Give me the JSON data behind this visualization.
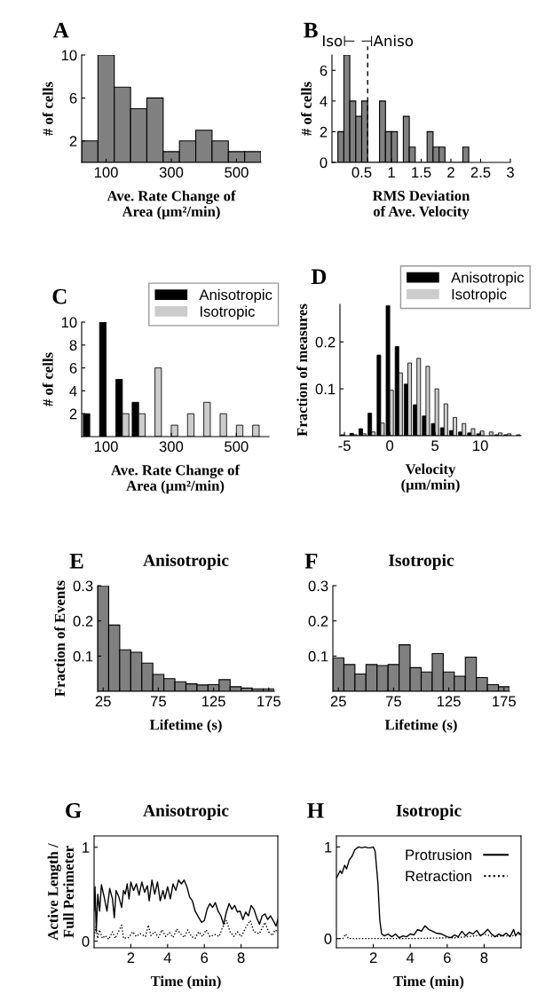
{
  "chart_data": [
    {
      "type": "histogram",
      "annotations": [
        "A"
      ],
      "xlabel": "Ave. Rate Change of\nArea (μm²/min)",
      "ylabel": "# of cells",
      "color": "#808080",
      "bins": [
        25,
        75,
        125,
        175,
        225,
        275,
        325,
        375,
        425,
        475,
        525,
        575
      ],
      "values": [
        2,
        10,
        7,
        5,
        6,
        1,
        2,
        3,
        2,
        1,
        1
      ],
      "xlim": [
        25,
        575
      ],
      "xticks": [
        100,
        300,
        500
      ],
      "ylim": [
        0,
        10
      ],
      "yticks": [
        2,
        6,
        10
      ]
    },
    {
      "type": "histogram",
      "annotations": [
        "B",
        "Iso⊢ ⊣Aniso"
      ],
      "xlabel": "RMS Deviation\nof Ave. Velocity",
      "ylabel": "# of cells",
      "color": "#808080",
      "bins": [
        0.1,
        0.2,
        0.3,
        0.4,
        0.5,
        0.6,
        0.7,
        0.8,
        0.9,
        1.0,
        1.1,
        1.2,
        1.3,
        1.4,
        1.5,
        1.6,
        1.7,
        1.8,
        1.9,
        2.0,
        2.1,
        2.2,
        2.3
      ],
      "values": [
        2,
        7,
        4,
        3,
        4,
        0,
        0,
        4,
        2,
        2,
        0,
        3,
        1,
        0,
        0,
        2,
        1,
        1,
        0,
        0,
        0,
        1
      ],
      "xlim": [
        0,
        3
      ],
      "xticks": [
        0.5,
        1,
        1.5,
        2,
        2.5,
        3
      ],
      "ylim": [
        0,
        7
      ],
      "yticks": [
        0,
        2,
        4,
        6
      ],
      "ref_lines": [
        {
          "axis": "x",
          "value": 0.6,
          "line_style": "dashed",
          "color": "#000000"
        }
      ]
    },
    {
      "type": "bar",
      "annotations": [
        "C"
      ],
      "xlabel": "Ave. Rate Change of\nArea (μm²/min)",
      "ylabel": "# of cells",
      "legend": "top right",
      "x": [
        50,
        100,
        150,
        200,
        250,
        300,
        350,
        400,
        450,
        500,
        550
      ],
      "series": [
        {
          "name": "Anisotropic",
          "color": "#000000",
          "values": [
            2,
            10,
            5,
            3,
            null,
            null,
            null,
            null,
            null,
            null,
            null
          ]
        },
        {
          "name": "Isotropic",
          "color": "#cccccc",
          "values": [
            null,
            null,
            2,
            2,
            6,
            1,
            2,
            3,
            2,
            1,
            1
          ]
        }
      ],
      "xlim": [
        25,
        600
      ],
      "xticks": [
        100,
        300,
        500
      ],
      "ylim": [
        0,
        10
      ],
      "yticks": [
        2,
        4,
        6,
        8,
        10
      ]
    },
    {
      "type": "bar",
      "annotations": [
        "D"
      ],
      "xlabel": "Velocity\n(μm/min)",
      "ylabel": "Fraction of measures",
      "legend": "top right",
      "x": [
        -5,
        -4,
        -3,
        -2,
        -1,
        0,
        1,
        2,
        3,
        4,
        5,
        6,
        7,
        8,
        9,
        10,
        11,
        12,
        13,
        14
      ],
      "series": [
        {
          "name": "Anisotropic",
          "color": "#000000",
          "values": [
            0.002,
            0.005,
            0.015,
            0.048,
            0.172,
            0.277,
            0.19,
            0.11,
            0.066,
            0.042,
            0.026,
            0.017,
            0.011,
            0.008,
            0.006,
            0.004,
            null,
            0.002,
            0.002,
            null
          ]
        },
        {
          "name": "Isotropic",
          "color": "#cccccc",
          "values": [
            null,
            0.002,
            0.004,
            0.008,
            0.027,
            0.097,
            0.134,
            0.155,
            0.165,
            0.148,
            0.1,
            0.068,
            0.039,
            0.026,
            0.015,
            0.01,
            0.008,
            0.006,
            0.004,
            0.002
          ]
        }
      ],
      "xlim": [
        -5.5,
        14.5
      ],
      "xticks": [
        -5,
        0,
        5,
        10
      ],
      "ylim": [
        0,
        0.28
      ],
      "yticks": [
        0.1,
        0.2
      ]
    },
    {
      "type": "histogram",
      "annotations": [
        "E"
      ],
      "title": "Anisotropic",
      "xlabel": "Lifetime (s)",
      "ylabel": "Fraction of Events",
      "color": "#808080",
      "bins": [
        20,
        30,
        40,
        50,
        60,
        70,
        80,
        90,
        100,
        110,
        120,
        130,
        140,
        150,
        160,
        170,
        180
      ],
      "values": [
        0.3,
        0.188,
        0.118,
        0.111,
        0.08,
        0.048,
        0.036,
        0.027,
        0.021,
        0.018,
        0.019,
        0.033,
        0.013,
        0.009,
        0.007,
        0.007
      ],
      "xlim": [
        20,
        180
      ],
      "xticks": [
        25,
        75,
        125,
        175
      ],
      "ylim": [
        0,
        0.3
      ],
      "yticks": [
        0.1,
        0.2,
        0.3
      ]
    },
    {
      "type": "histogram",
      "annotations": [
        "F"
      ],
      "title": "Isotropic",
      "xlabel": "Lifetime (s)",
      "color": "#808080",
      "bins": [
        20,
        30,
        40,
        50,
        60,
        70,
        80,
        90,
        100,
        110,
        120,
        130,
        140,
        150,
        160,
        170,
        180
      ],
      "values": [
        0.095,
        0.076,
        0.049,
        0.076,
        0.073,
        0.076,
        0.132,
        0.067,
        0.055,
        0.107,
        0.055,
        0.043,
        0.097,
        0.039,
        0.019,
        0.013
      ],
      "xlim": [
        20,
        180
      ],
      "xticks": [
        25,
        75,
        125,
        175
      ],
      "ylim": [
        0,
        0.3
      ],
      "yticks": [
        0.1,
        0.2,
        0.3
      ]
    },
    {
      "type": "line",
      "annotations": [
        "G"
      ],
      "title": "Anisotropic",
      "xlabel": "Time (min)",
      "ylabel": "Active Length /\nFull Perimeter",
      "series": [
        {
          "color": "#000000",
          "line_style": "solid",
          "x": [
            0,
            0.05,
            0.12,
            0.2,
            0.3,
            0.4,
            0.55,
            0.7,
            0.85,
            1.0,
            1.1,
            1.2,
            1.35,
            1.5,
            1.6,
            1.7,
            1.8,
            1.9,
            2.0,
            2.15,
            2.3,
            2.45,
            2.6,
            2.75,
            2.9,
            3.0,
            3.15,
            3.3,
            3.45,
            3.6,
            3.75,
            3.85,
            4.0,
            4.15,
            4.3,
            4.45,
            4.6,
            4.75,
            4.9,
            5.05,
            5.2,
            5.35,
            5.5,
            5.7,
            5.85,
            6.0,
            6.15,
            6.3,
            6.45,
            6.6,
            6.75,
            6.9,
            7.05,
            7.2,
            7.35,
            7.5,
            7.65,
            7.8,
            7.95,
            8.1,
            8.25,
            8.4,
            8.55,
            8.7,
            8.85,
            9.0,
            9.15,
            9.3,
            9.45,
            9.6,
            9.75,
            9.9,
            10
          ],
          "values": [
            0.32,
            0.58,
            0.1,
            0.5,
            0.32,
            0.6,
            0.47,
            0.32,
            0.56,
            0.45,
            0.25,
            0.54,
            0.47,
            0.36,
            0.54,
            0.5,
            0.61,
            0.45,
            0.63,
            0.54,
            0.61,
            0.49,
            0.63,
            0.52,
            0.59,
            0.43,
            0.65,
            0.5,
            0.63,
            0.43,
            0.54,
            0.45,
            0.58,
            0.45,
            0.61,
            0.54,
            0.65,
            0.61,
            0.65,
            0.58,
            0.47,
            0.43,
            0.32,
            0.25,
            0.2,
            0.22,
            0.34,
            0.4,
            0.36,
            0.41,
            0.32,
            0.27,
            0.18,
            0.31,
            0.4,
            0.34,
            0.38,
            0.31,
            0.32,
            0.23,
            0.31,
            0.27,
            0.38,
            0.34,
            0.25,
            0.18,
            0.27,
            0.29,
            0.23,
            0.27,
            0.22,
            0.16,
            0.23
          ]
        },
        {
          "color": "#000000",
          "line_style": "dotted",
          "x": [
            0,
            0.1,
            0.2,
            0.3,
            0.45,
            0.6,
            0.8,
            1.0,
            1.15,
            1.5,
            1.6,
            1.9,
            2.1,
            2.3,
            2.5,
            2.8,
            2.95,
            3.1,
            3.3,
            3.5,
            3.7,
            3.9,
            4.1,
            4.3,
            4.5,
            4.7,
            4.9,
            5.1,
            5.3,
            5.5,
            5.7,
            5.9,
            6.1,
            6.3,
            6.6,
            6.8,
            7.0,
            7.2,
            7.4,
            7.6,
            7.8,
            8.0,
            8.3,
            8.5,
            8.7,
            9.0,
            9.3,
            9.5,
            9.7,
            9.85,
            10
          ],
          "values": [
            0.05,
            0.15,
            0.03,
            0.12,
            0.03,
            0.06,
            0.02,
            0.1,
            0.03,
            0.17,
            0.03,
            0.04,
            0.1,
            0.05,
            0.08,
            0.05,
            0.17,
            0.06,
            0.1,
            0.04,
            0.12,
            0.05,
            0.09,
            0.04,
            0.13,
            0.08,
            0.04,
            0.12,
            0.05,
            0.03,
            0.1,
            0.05,
            0.12,
            0.05,
            0.07,
            0.05,
            0.15,
            0.22,
            0.1,
            0.05,
            0.1,
            0.05,
            0.16,
            0.22,
            0.1,
            0.08,
            0.2,
            0.1,
            0.06,
            0.12,
            0.1
          ]
        }
      ],
      "xlim": [
        0,
        10
      ],
      "xticks": [
        2,
        4,
        6,
        8
      ],
      "ylim": [
        -0.07,
        1.12
      ],
      "yticks": [
        0,
        1
      ]
    },
    {
      "type": "line",
      "annotations": [
        "H"
      ],
      "title": "Isotropic",
      "xlabel": "Time (min)",
      "legend": "top right",
      "series": [
        {
          "name": "Protrusion",
          "color": "#000000",
          "line_style": "solid",
          "x": [
            0,
            0.2,
            0.3,
            0.45,
            0.55,
            0.7,
            0.85,
            1.0,
            1.2,
            1.4,
            1.55,
            1.7,
            1.85,
            2.0,
            2.1,
            2.25,
            2.35,
            2.45,
            2.6,
            2.8,
            3.0,
            3.2,
            3.4,
            3.6,
            3.8,
            4.0,
            4.2,
            4.4,
            4.6,
            4.8,
            5.0,
            5.2,
            5.4,
            5.7,
            6.0,
            6.2,
            6.4,
            6.6,
            6.8,
            7.0,
            7.2,
            7.4,
            7.6,
            7.8,
            8.0,
            8.2,
            8.4,
            8.6,
            8.8,
            9.0,
            9.2,
            9.4,
            9.6,
            9.7,
            9.85,
            10
          ],
          "values": [
            0.66,
            0.74,
            0.71,
            0.8,
            0.76,
            0.86,
            0.9,
            0.97,
            1.0,
            0.99,
            1.0,
            0.99,
            0.99,
            1.0,
            0.95,
            0.6,
            0.2,
            0.05,
            0.03,
            0.05,
            0.02,
            0.05,
            0.01,
            0.03,
            0.02,
            0.05,
            0.04,
            0.1,
            0.08,
            0.14,
            0.1,
            0.08,
            0.06,
            0.05,
            0.02,
            0.01,
            0.04,
            0.02,
            0.08,
            0.03,
            0.07,
            0.05,
            0.09,
            0.03,
            0.06,
            0.1,
            0.05,
            0.02,
            0.05,
            0.03,
            0.06,
            0.02,
            0.1,
            0.03,
            0.07,
            0.04
          ]
        },
        {
          "name": "Retraction",
          "color": "#000000",
          "line_style": "dotted",
          "x": [
            0,
            0.35,
            0.5,
            0.65,
            4,
            6.5,
            7.5,
            8,
            8.5,
            9,
            9.5,
            10
          ],
          "values": [
            0,
            0,
            0.05,
            0,
            0,
            0.01,
            0.03,
            0.05,
            0.02,
            0.03,
            0.03,
            0.05
          ]
        }
      ],
      "xlim": [
        0,
        10
      ],
      "xticks": [
        2,
        4,
        6,
        8
      ],
      "ylim": [
        -0.1,
        1.12
      ],
      "yticks": [
        0,
        1
      ]
    }
  ]
}
